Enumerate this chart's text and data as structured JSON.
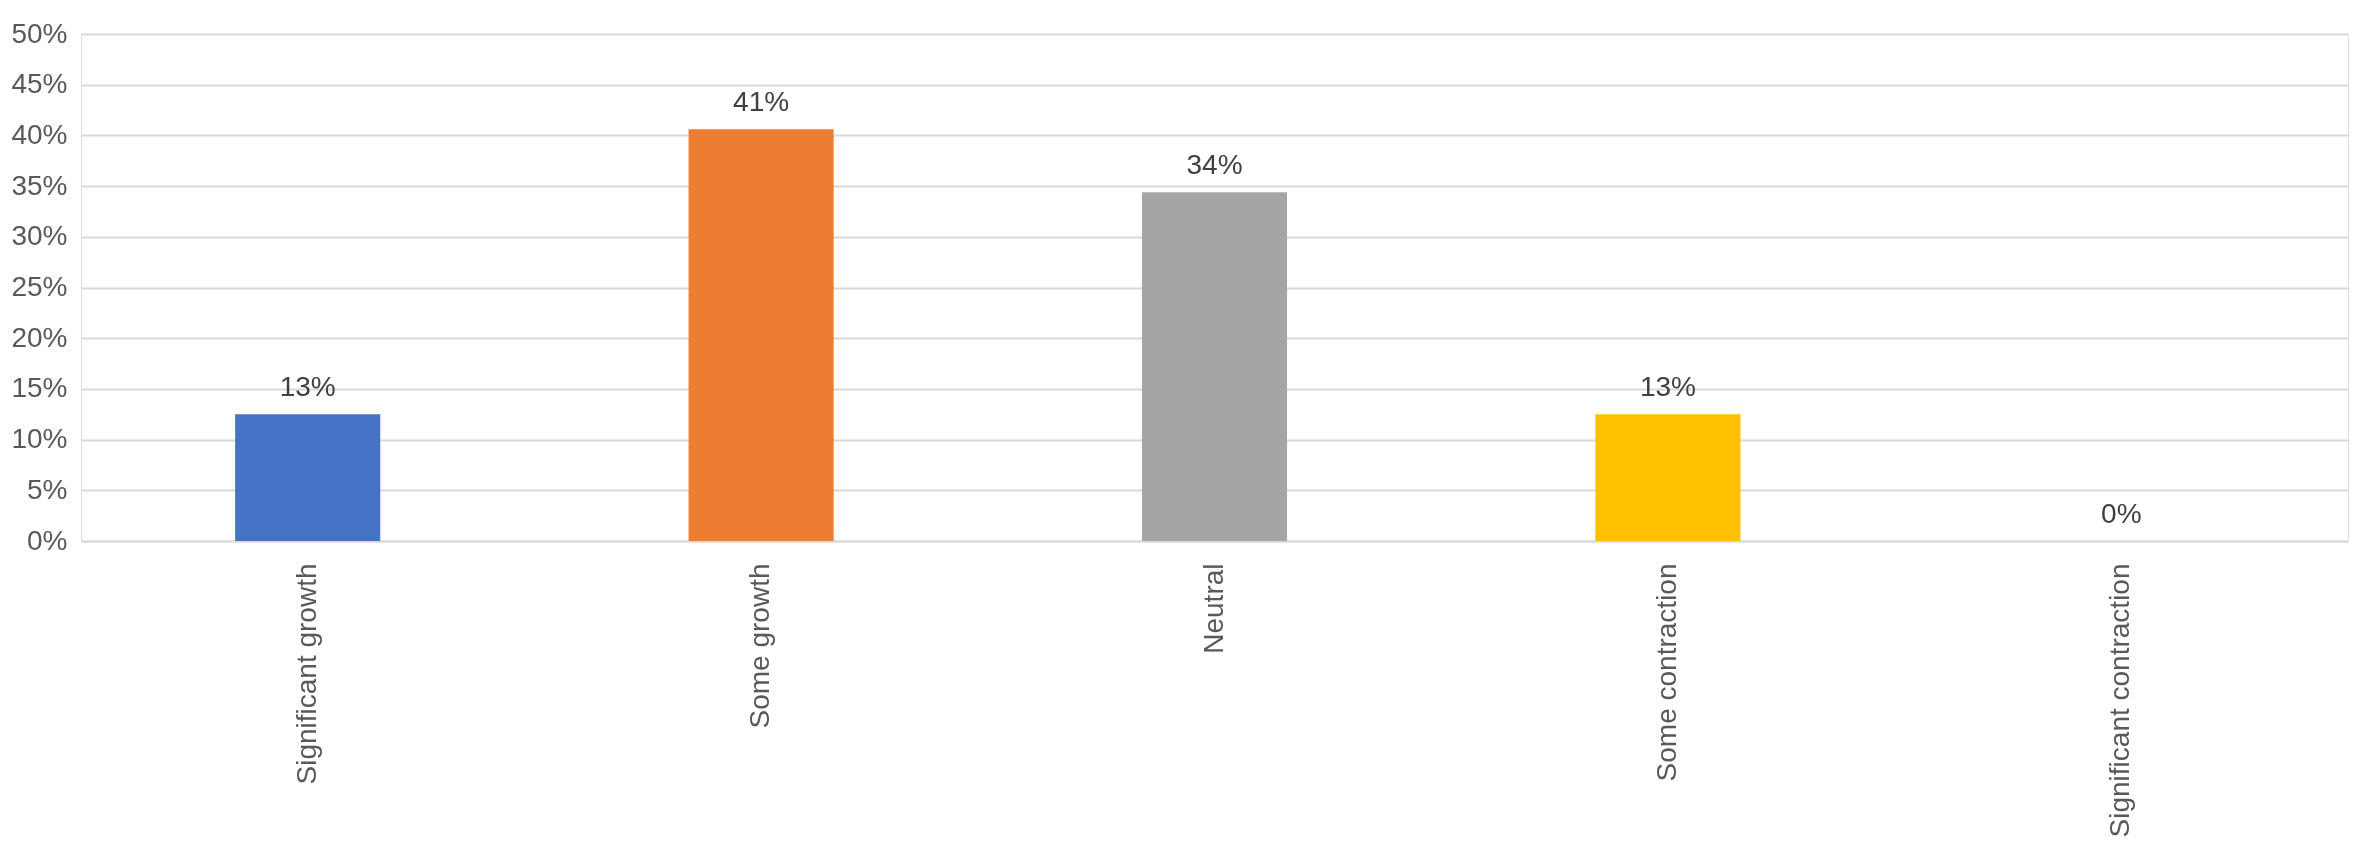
{
  "chart_data": {
    "type": "bar",
    "categories": [
      "Significant growth",
      "Some growth",
      "Neutral",
      "Some contraction",
      "Significant contraction"
    ],
    "values": [
      12.5,
      40.6,
      34.4,
      12.5,
      0
    ],
    "value_labels": [
      "13%",
      "41%",
      "34%",
      "13%",
      "0%"
    ],
    "colors": [
      "#4472c4",
      "#ed7d31",
      "#a5a5a5",
      "#ffc000",
      "#5b9bd5"
    ],
    "ylim": [
      0,
      50
    ],
    "yticks": [
      {
        "value": 0,
        "label": "0%"
      },
      {
        "value": 5,
        "label": "5%"
      },
      {
        "value": 10,
        "label": "10%"
      },
      {
        "value": 15,
        "label": "15%"
      },
      {
        "value": 20,
        "label": "20%"
      },
      {
        "value": 25,
        "label": "25%"
      },
      {
        "value": 30,
        "label": "30%"
      },
      {
        "value": 35,
        "label": "35%"
      },
      {
        "value": 40,
        "label": "40%"
      },
      {
        "value": 45,
        "label": "45%"
      },
      {
        "value": 50,
        "label": "50%"
      }
    ],
    "grid": "y",
    "legend": false
  }
}
